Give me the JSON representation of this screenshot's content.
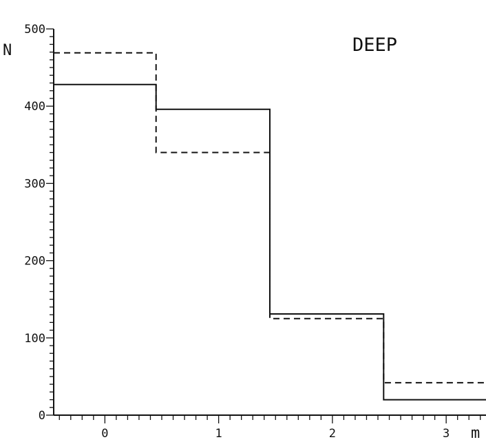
{
  "chart_data": {
    "type": "line",
    "step": true,
    "xlabel": "m",
    "ylabel": "N",
    "annotation": "DEEP",
    "xlim": [
      -0.45,
      3.35
    ],
    "ylim": [
      0,
      500
    ],
    "x_ticks": [
      "0",
      "1",
      "2",
      "3"
    ],
    "y_ticks": [
      "0",
      "100",
      "200",
      "300",
      "400",
      "500"
    ],
    "bin_edges": [
      -0.45,
      0.45,
      1.45,
      2.45,
      3.35
    ],
    "series": [
      {
        "style": "solid",
        "values": [
          428,
          396,
          131,
          20
        ]
      },
      {
        "style": "dashed",
        "values": [
          469,
          340,
          125,
          42
        ]
      }
    ],
    "grid": false
  }
}
